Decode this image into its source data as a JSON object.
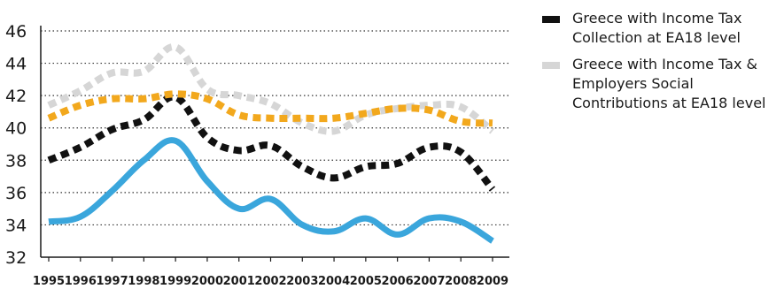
{
  "chart_data": {
    "type": "line",
    "x": [
      "1995",
      "1996",
      "1997",
      "1998",
      "1999",
      "2000",
      "2001",
      "2002",
      "2003",
      "2004",
      "2005",
      "2006",
      "2007",
      "2008",
      "2009"
    ],
    "yticks": [
      32,
      34,
      36,
      38,
      40,
      42,
      44,
      46
    ],
    "ylim": [
      32,
      46
    ],
    "grid": "horizontal-dotted",
    "legend_position": "right",
    "series": [
      {
        "name": "Greece with Income Tax Collection at EA18 level",
        "color": "#111111",
        "style": "dashed",
        "values": [
          38.0,
          38.8,
          39.9,
          40.5,
          41.9,
          39.4,
          38.6,
          38.9,
          37.6,
          36.9,
          37.6,
          37.8,
          38.8,
          38.5,
          36.2
        ]
      },
      {
        "name": "Greece with Income Tax & Employers Social Contributions at EA18 level",
        "color": "#d6d6d6",
        "style": "dashed",
        "values": [
          41.4,
          42.3,
          43.4,
          43.5,
          45.0,
          42.4,
          42.0,
          41.5,
          40.3,
          39.8,
          40.8,
          41.2,
          41.4,
          41.3,
          39.8
        ]
      },
      {
        "color": "#f2a81d",
        "style": "dashed",
        "values": [
          40.6,
          41.4,
          41.8,
          41.8,
          42.1,
          41.8,
          40.8,
          40.6,
          40.6,
          40.6,
          40.9,
          41.2,
          41.1,
          40.4,
          40.3
        ]
      },
      {
        "color": "#3aa6dc",
        "style": "solid",
        "values": [
          34.2,
          34.5,
          36.1,
          38.0,
          39.2,
          36.7,
          35.0,
          35.6,
          34.0,
          33.6,
          34.4,
          33.4,
          34.4,
          34.2,
          33.0
        ]
      }
    ]
  },
  "legend": {
    "items": [
      {
        "label": "Greece with Income Tax Collection at EA18 level",
        "color": "#111111"
      },
      {
        "label": "Greece with Income Tax & Employers Social Contributions at EA18 level",
        "color": "#d6d6d6"
      }
    ]
  }
}
